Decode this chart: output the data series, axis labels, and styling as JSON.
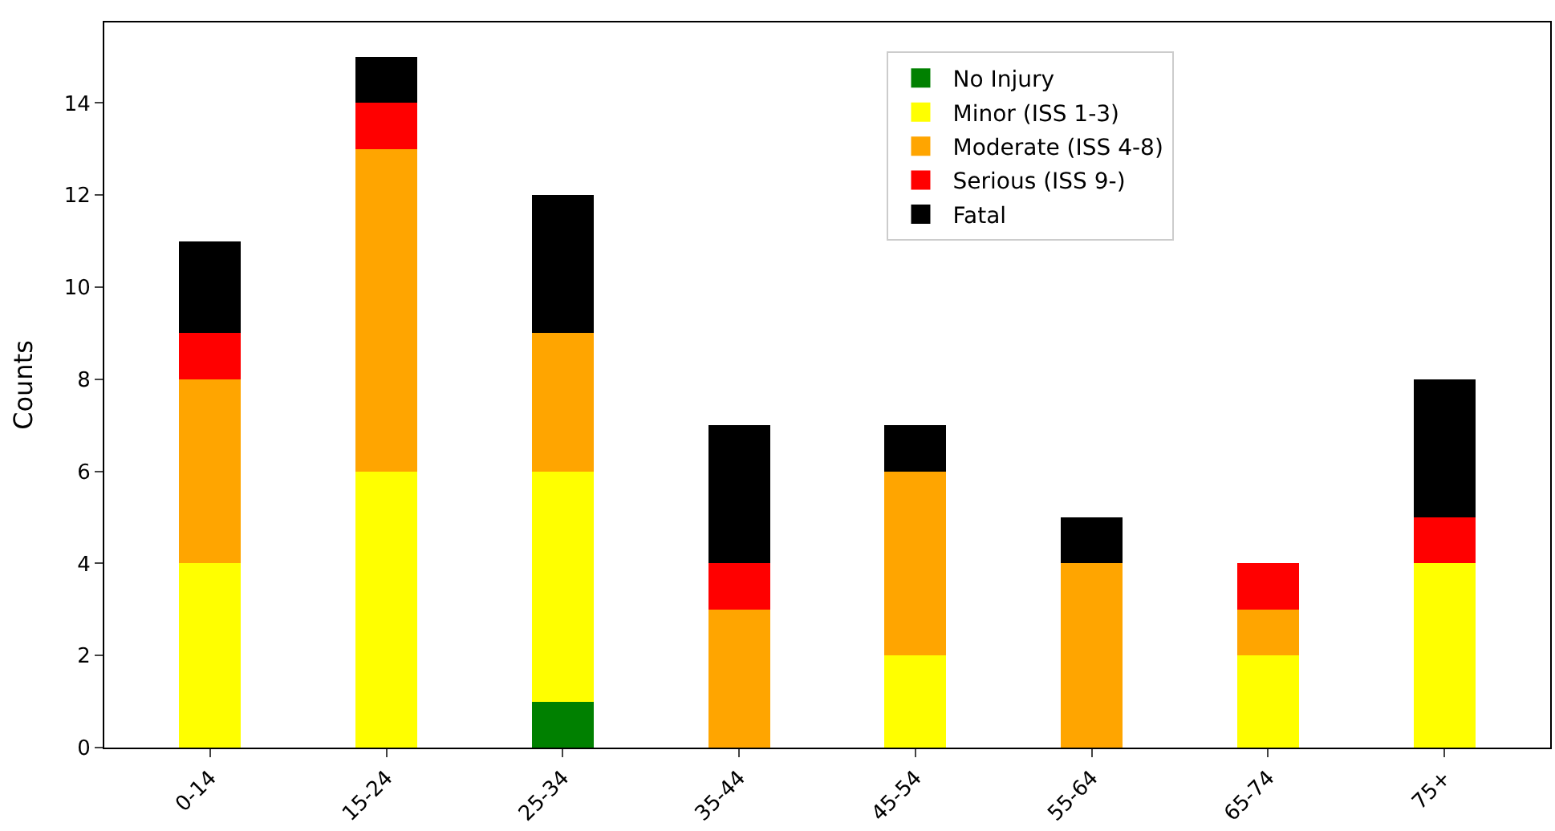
{
  "chart_data": {
    "type": "bar",
    "stacked": true,
    "ylabel": "Counts",
    "categories": [
      "0-14",
      "15-24",
      "25-34",
      "35-44",
      "45-54",
      "55-64",
      "65-74",
      "75+"
    ],
    "series": [
      {
        "name": "No Injury",
        "color": "#008000",
        "values": [
          0,
          0,
          1,
          0,
          0,
          0,
          0,
          0
        ]
      },
      {
        "name": "Minor (ISS 1-3)",
        "color": "#ffff00",
        "values": [
          4,
          6,
          5,
          0,
          2,
          0,
          2,
          4
        ]
      },
      {
        "name": "Moderate (ISS 4-8)",
        "color": "#ffa500",
        "values": [
          4,
          7,
          3,
          3,
          4,
          4,
          1,
          0
        ]
      },
      {
        "name": "Serious (ISS 9-)",
        "color": "#ff0000",
        "values": [
          1,
          1,
          0,
          1,
          0,
          0,
          1,
          1
        ]
      },
      {
        "name": "Fatal",
        "color": "#000000",
        "values": [
          2,
          1,
          3,
          3,
          1,
          1,
          0,
          3
        ]
      }
    ],
    "ylim": [
      0,
      15.75
    ],
    "yticks": [
      0,
      2,
      4,
      6,
      8,
      10,
      12,
      14
    ],
    "legend": "top right"
  }
}
